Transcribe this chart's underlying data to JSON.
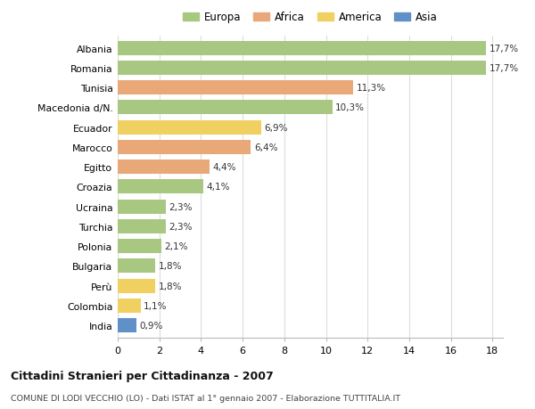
{
  "categories": [
    "Albania",
    "Romania",
    "Tunisia",
    "Macedonia d/N.",
    "Ecuador",
    "Marocco",
    "Egitto",
    "Croazia",
    "Ucraina",
    "Turchia",
    "Polonia",
    "Bulgaria",
    "Perù",
    "Colombia",
    "India"
  ],
  "values": [
    17.7,
    17.7,
    11.3,
    10.3,
    6.9,
    6.4,
    4.4,
    4.1,
    2.3,
    2.3,
    2.1,
    1.8,
    1.8,
    1.1,
    0.9
  ],
  "labels": [
    "17,7%",
    "17,7%",
    "11,3%",
    "10,3%",
    "6,9%",
    "6,4%",
    "4,4%",
    "4,1%",
    "2,3%",
    "2,3%",
    "2,1%",
    "1,8%",
    "1,8%",
    "1,1%",
    "0,9%"
  ],
  "continents": [
    "Europa",
    "Europa",
    "Africa",
    "Europa",
    "America",
    "Africa",
    "Africa",
    "Europa",
    "Europa",
    "Europa",
    "Europa",
    "Europa",
    "America",
    "America",
    "Asia"
  ],
  "colors": {
    "Europa": "#a8c882",
    "Africa": "#e8a878",
    "America": "#f0d060",
    "Asia": "#6090c8"
  },
  "legend_order": [
    "Europa",
    "Africa",
    "America",
    "Asia"
  ],
  "xlim": [
    0,
    18
  ],
  "xticks": [
    0,
    2,
    4,
    6,
    8,
    10,
    12,
    14,
    16,
    18
  ],
  "title": "Cittadini Stranieri per Cittadinanza - 2007",
  "subtitle": "COMUNE DI LODI VECCHIO (LO) - Dati ISTAT al 1° gennaio 2007 - Elaborazione TUTTITALIA.IT",
  "background_color": "#ffffff",
  "grid_color": "#dddddd"
}
